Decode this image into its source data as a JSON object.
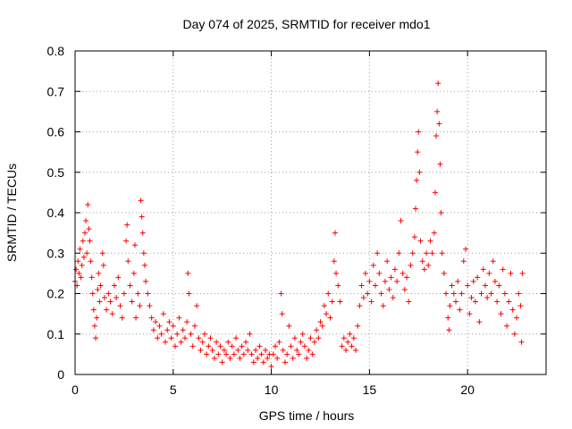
{
  "chart_data": {
    "type": "scatter",
    "title": "Day 074 of 2025, SRMTID for receiver mdo1",
    "xlabel": "GPS time / hours",
    "ylabel": "SRMTID / TECUs",
    "xlim": [
      0,
      24
    ],
    "ylim": [
      0,
      0.8
    ],
    "xticks": [
      0,
      5,
      10,
      15,
      20
    ],
    "xtick_labels": [
      "0",
      "5",
      "10",
      "15",
      "20"
    ],
    "yticks": [
      0,
      0.1,
      0.2,
      0.3,
      0.4,
      0.5,
      0.6,
      0.7,
      0.8
    ],
    "ytick_labels": [
      "0",
      "0.1",
      "0.2",
      "0.3",
      "0.4",
      "0.5",
      "0.6",
      "0.7",
      "0.8"
    ],
    "grid": true,
    "marker": "+",
    "color": "#ff0000",
    "series": [
      {
        "name": "mdo1",
        "points": [
          [
            0.0,
            0.23
          ],
          [
            0.05,
            0.26
          ],
          [
            0.1,
            0.22
          ],
          [
            0.15,
            0.28
          ],
          [
            0.2,
            0.25
          ],
          [
            0.25,
            0.31
          ],
          [
            0.3,
            0.24
          ],
          [
            0.35,
            0.27
          ],
          [
            0.4,
            0.33
          ],
          [
            0.45,
            0.29
          ],
          [
            0.5,
            0.35
          ],
          [
            0.55,
            0.38
          ],
          [
            0.6,
            0.3
          ],
          [
            0.65,
            0.42
          ],
          [
            0.7,
            0.36
          ],
          [
            0.75,
            0.33
          ],
          [
            0.8,
            0.28
          ],
          [
            0.85,
            0.24
          ],
          [
            0.9,
            0.2
          ],
          [
            0.95,
            0.16
          ],
          [
            1.0,
            0.12
          ],
          [
            1.05,
            0.09
          ],
          [
            1.1,
            0.14
          ],
          [
            1.15,
            0.21
          ],
          [
            1.2,
            0.25
          ],
          [
            1.25,
            0.18
          ],
          [
            1.3,
            0.22
          ],
          [
            1.4,
            0.3
          ],
          [
            1.45,
            0.27
          ],
          [
            1.5,
            0.19
          ],
          [
            1.6,
            0.16
          ],
          [
            1.7,
            0.2
          ],
          [
            1.8,
            0.18
          ],
          [
            1.9,
            0.15
          ],
          [
            2.0,
            0.22
          ],
          [
            2.1,
            0.19
          ],
          [
            2.2,
            0.24
          ],
          [
            2.3,
            0.17
          ],
          [
            2.4,
            0.14
          ],
          [
            2.5,
            0.2
          ],
          [
            2.6,
            0.33
          ],
          [
            2.65,
            0.37
          ],
          [
            2.7,
            0.28
          ],
          [
            2.8,
            0.22
          ],
          [
            2.9,
            0.18
          ],
          [
            3.0,
            0.25
          ],
          [
            3.05,
            0.32
          ],
          [
            3.1,
            0.14
          ],
          [
            3.2,
            0.2
          ],
          [
            3.3,
            0.17
          ],
          [
            3.35,
            0.43
          ],
          [
            3.4,
            0.39
          ],
          [
            3.45,
            0.35
          ],
          [
            3.5,
            0.3
          ],
          [
            3.55,
            0.27
          ],
          [
            3.6,
            0.23
          ],
          [
            3.7,
            0.2
          ],
          [
            3.8,
            0.17
          ],
          [
            3.9,
            0.14
          ],
          [
            4.0,
            0.11
          ],
          [
            4.1,
            0.13
          ],
          [
            4.2,
            0.09
          ],
          [
            4.3,
            0.12
          ],
          [
            4.4,
            0.1
          ],
          [
            4.5,
            0.15
          ],
          [
            4.6,
            0.08
          ],
          [
            4.7,
            0.11
          ],
          [
            4.8,
            0.13
          ],
          [
            4.9,
            0.09
          ],
          [
            5.0,
            0.12
          ],
          [
            5.1,
            0.07
          ],
          [
            5.2,
            0.1
          ],
          [
            5.3,
            0.14
          ],
          [
            5.4,
            0.08
          ],
          [
            5.5,
            0.11
          ],
          [
            5.6,
            0.09
          ],
          [
            5.7,
            0.13
          ],
          [
            5.75,
            0.25
          ],
          [
            5.8,
            0.2
          ],
          [
            5.9,
            0.1
          ],
          [
            6.0,
            0.07
          ],
          [
            6.1,
            0.12
          ],
          [
            6.2,
            0.17
          ],
          [
            6.3,
            0.09
          ],
          [
            6.4,
            0.06
          ],
          [
            6.5,
            0.08
          ],
          [
            6.6,
            0.1
          ],
          [
            6.7,
            0.05
          ],
          [
            6.8,
            0.07
          ],
          [
            6.9,
            0.09
          ],
          [
            7.0,
            0.06
          ],
          [
            7.1,
            0.04
          ],
          [
            7.2,
            0.08
          ],
          [
            7.3,
            0.05
          ],
          [
            7.4,
            0.07
          ],
          [
            7.5,
            0.03
          ],
          [
            7.6,
            0.06
          ],
          [
            7.7,
            0.05
          ],
          [
            7.8,
            0.08
          ],
          [
            7.9,
            0.04
          ],
          [
            8.0,
            0.07
          ],
          [
            8.1,
            0.05
          ],
          [
            8.2,
            0.09
          ],
          [
            8.3,
            0.06
          ],
          [
            8.4,
            0.04
          ],
          [
            8.5,
            0.07
          ],
          [
            8.6,
            0.05
          ],
          [
            8.7,
            0.08
          ],
          [
            8.8,
            0.06
          ],
          [
            8.9,
            0.1
          ],
          [
            9.0,
            0.05
          ],
          [
            9.1,
            0.03
          ],
          [
            9.2,
            0.06
          ],
          [
            9.3,
            0.04
          ],
          [
            9.4,
            0.07
          ],
          [
            9.5,
            0.05
          ],
          [
            9.6,
            0.03
          ],
          [
            9.7,
            0.06
          ],
          [
            9.8,
            0.04
          ],
          [
            9.9,
            0.05
          ],
          [
            10.0,
            0.02
          ],
          [
            10.1,
            0.05
          ],
          [
            10.2,
            0.07
          ],
          [
            10.3,
            0.04
          ],
          [
            10.4,
            0.08
          ],
          [
            10.5,
            0.2
          ],
          [
            10.55,
            0.15
          ],
          [
            10.6,
            0.06
          ],
          [
            10.7,
            0.03
          ],
          [
            10.8,
            0.05
          ],
          [
            10.9,
            0.12
          ],
          [
            11.0,
            0.07
          ],
          [
            11.1,
            0.04
          ],
          [
            11.2,
            0.09
          ],
          [
            11.3,
            0.06
          ],
          [
            11.4,
            0.05
          ],
          [
            11.5,
            0.08
          ],
          [
            11.6,
            0.1
          ],
          [
            11.7,
            0.07
          ],
          [
            11.8,
            0.04
          ],
          [
            11.9,
            0.06
          ],
          [
            12.0,
            0.09
          ],
          [
            12.1,
            0.05
          ],
          [
            12.2,
            0.08
          ],
          [
            12.3,
            0.11
          ],
          [
            12.4,
            0.09
          ],
          [
            12.5,
            0.13
          ],
          [
            12.6,
            0.12
          ],
          [
            12.7,
            0.17
          ],
          [
            12.8,
            0.15
          ],
          [
            12.9,
            0.2
          ],
          [
            13.0,
            0.14
          ],
          [
            13.1,
            0.18
          ],
          [
            13.2,
            0.28
          ],
          [
            13.25,
            0.35
          ],
          [
            13.3,
            0.25
          ],
          [
            13.4,
            0.22
          ],
          [
            13.5,
            0.18
          ],
          [
            13.6,
            0.07
          ],
          [
            13.7,
            0.09
          ],
          [
            13.8,
            0.06
          ],
          [
            13.9,
            0.08
          ],
          [
            14.0,
            0.1
          ],
          [
            14.1,
            0.07
          ],
          [
            14.2,
            0.09
          ],
          [
            14.3,
            0.06
          ],
          [
            14.4,
            0.12
          ],
          [
            14.5,
            0.17
          ],
          [
            14.6,
            0.22
          ],
          [
            14.7,
            0.19
          ],
          [
            14.8,
            0.25
          ],
          [
            14.9,
            0.2
          ],
          [
            15.0,
            0.23
          ],
          [
            15.1,
            0.18
          ],
          [
            15.2,
            0.27
          ],
          [
            15.3,
            0.22
          ],
          [
            15.4,
            0.3
          ],
          [
            15.5,
            0.25
          ],
          [
            15.6,
            0.2
          ],
          [
            15.7,
            0.17
          ],
          [
            15.8,
            0.23
          ],
          [
            15.9,
            0.28
          ],
          [
            16.0,
            0.21
          ],
          [
            16.1,
            0.24
          ],
          [
            16.2,
            0.19
          ],
          [
            16.3,
            0.26
          ],
          [
            16.4,
            0.23
          ],
          [
            16.5,
            0.3
          ],
          [
            16.6,
            0.38
          ],
          [
            16.7,
            0.25
          ],
          [
            16.8,
            0.21
          ],
          [
            16.9,
            0.24
          ],
          [
            17.0,
            0.18
          ],
          [
            17.1,
            0.27
          ],
          [
            17.2,
            0.3
          ],
          [
            17.3,
            0.34
          ],
          [
            17.35,
            0.41
          ],
          [
            17.4,
            0.48
          ],
          [
            17.45,
            0.55
          ],
          [
            17.5,
            0.6
          ],
          [
            17.55,
            0.5
          ],
          [
            17.6,
            0.33
          ],
          [
            17.7,
            0.28
          ],
          [
            17.8,
            0.26
          ],
          [
            17.9,
            0.3
          ],
          [
            18.0,
            0.27
          ],
          [
            18.1,
            0.33
          ],
          [
            18.2,
            0.3
          ],
          [
            18.3,
            0.35
          ],
          [
            18.35,
            0.45
          ],
          [
            18.4,
            0.59
          ],
          [
            18.45,
            0.65
          ],
          [
            18.5,
            0.72
          ],
          [
            18.55,
            0.62
          ],
          [
            18.6,
            0.52
          ],
          [
            18.65,
            0.4
          ],
          [
            18.7,
            0.3
          ],
          [
            18.8,
            0.25
          ],
          [
            18.9,
            0.2
          ],
          [
            19.0,
            0.14
          ],
          [
            19.05,
            0.11
          ],
          [
            19.1,
            0.17
          ],
          [
            19.2,
            0.22
          ],
          [
            19.3,
            0.2
          ],
          [
            19.4,
            0.18
          ],
          [
            19.5,
            0.23
          ],
          [
            19.6,
            0.16
          ],
          [
            19.7,
            0.2
          ],
          [
            19.8,
            0.28
          ],
          [
            19.9,
            0.31
          ],
          [
            20.0,
            0.22
          ],
          [
            20.1,
            0.15
          ],
          [
            20.2,
            0.19
          ],
          [
            20.3,
            0.23
          ],
          [
            20.4,
            0.18
          ],
          [
            20.5,
            0.24
          ],
          [
            20.6,
            0.13
          ],
          [
            20.7,
            0.2
          ],
          [
            20.8,
            0.26
          ],
          [
            20.9,
            0.22
          ],
          [
            21.0,
            0.19
          ],
          [
            21.1,
            0.25
          ],
          [
            21.2,
            0.2
          ],
          [
            21.3,
            0.28
          ],
          [
            21.4,
            0.23
          ],
          [
            21.5,
            0.18
          ],
          [
            21.6,
            0.22
          ],
          [
            21.7,
            0.15
          ],
          [
            21.8,
            0.26
          ],
          [
            21.9,
            0.2
          ],
          [
            22.0,
            0.12
          ],
          [
            22.1,
            0.18
          ],
          [
            22.2,
            0.25
          ],
          [
            22.3,
            0.16
          ],
          [
            22.4,
            0.1
          ],
          [
            22.5,
            0.14
          ],
          [
            22.6,
            0.2
          ],
          [
            22.7,
            0.17
          ],
          [
            22.75,
            0.08
          ],
          [
            22.8,
            0.25
          ]
        ]
      }
    ]
  }
}
